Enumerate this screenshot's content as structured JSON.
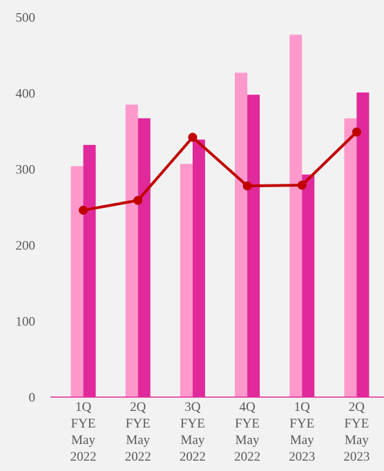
{
  "chart_data": {
    "type": "bar-line",
    "categories": [
      [
        "1Q",
        "FYE",
        "May",
        "2022"
      ],
      [
        "2Q",
        "FYE",
        "May",
        "2022"
      ],
      [
        "3Q",
        "FYE",
        "May",
        "2022"
      ],
      [
        "4Q",
        "FYE",
        "May",
        "2022"
      ],
      [
        "1Q",
        "FYE",
        "May",
        "2023"
      ],
      [
        "2Q",
        "FYE",
        "May",
        "2023"
      ]
    ],
    "series": [
      {
        "type": "bar",
        "color": "#ff99cc",
        "values": [
          304,
          385,
          307,
          427,
          477,
          367
        ]
      },
      {
        "type": "bar",
        "color": "#e0299a",
        "values": [
          332,
          367,
          339,
          398,
          293,
          401
        ]
      },
      {
        "type": "line",
        "color": "#c00000",
        "values": [
          246,
          259,
          342,
          278,
          279,
          349
        ]
      }
    ],
    "ylim": [
      0,
      500
    ],
    "yticks": [
      0,
      100,
      200,
      300,
      400,
      500
    ],
    "grid": false
  }
}
